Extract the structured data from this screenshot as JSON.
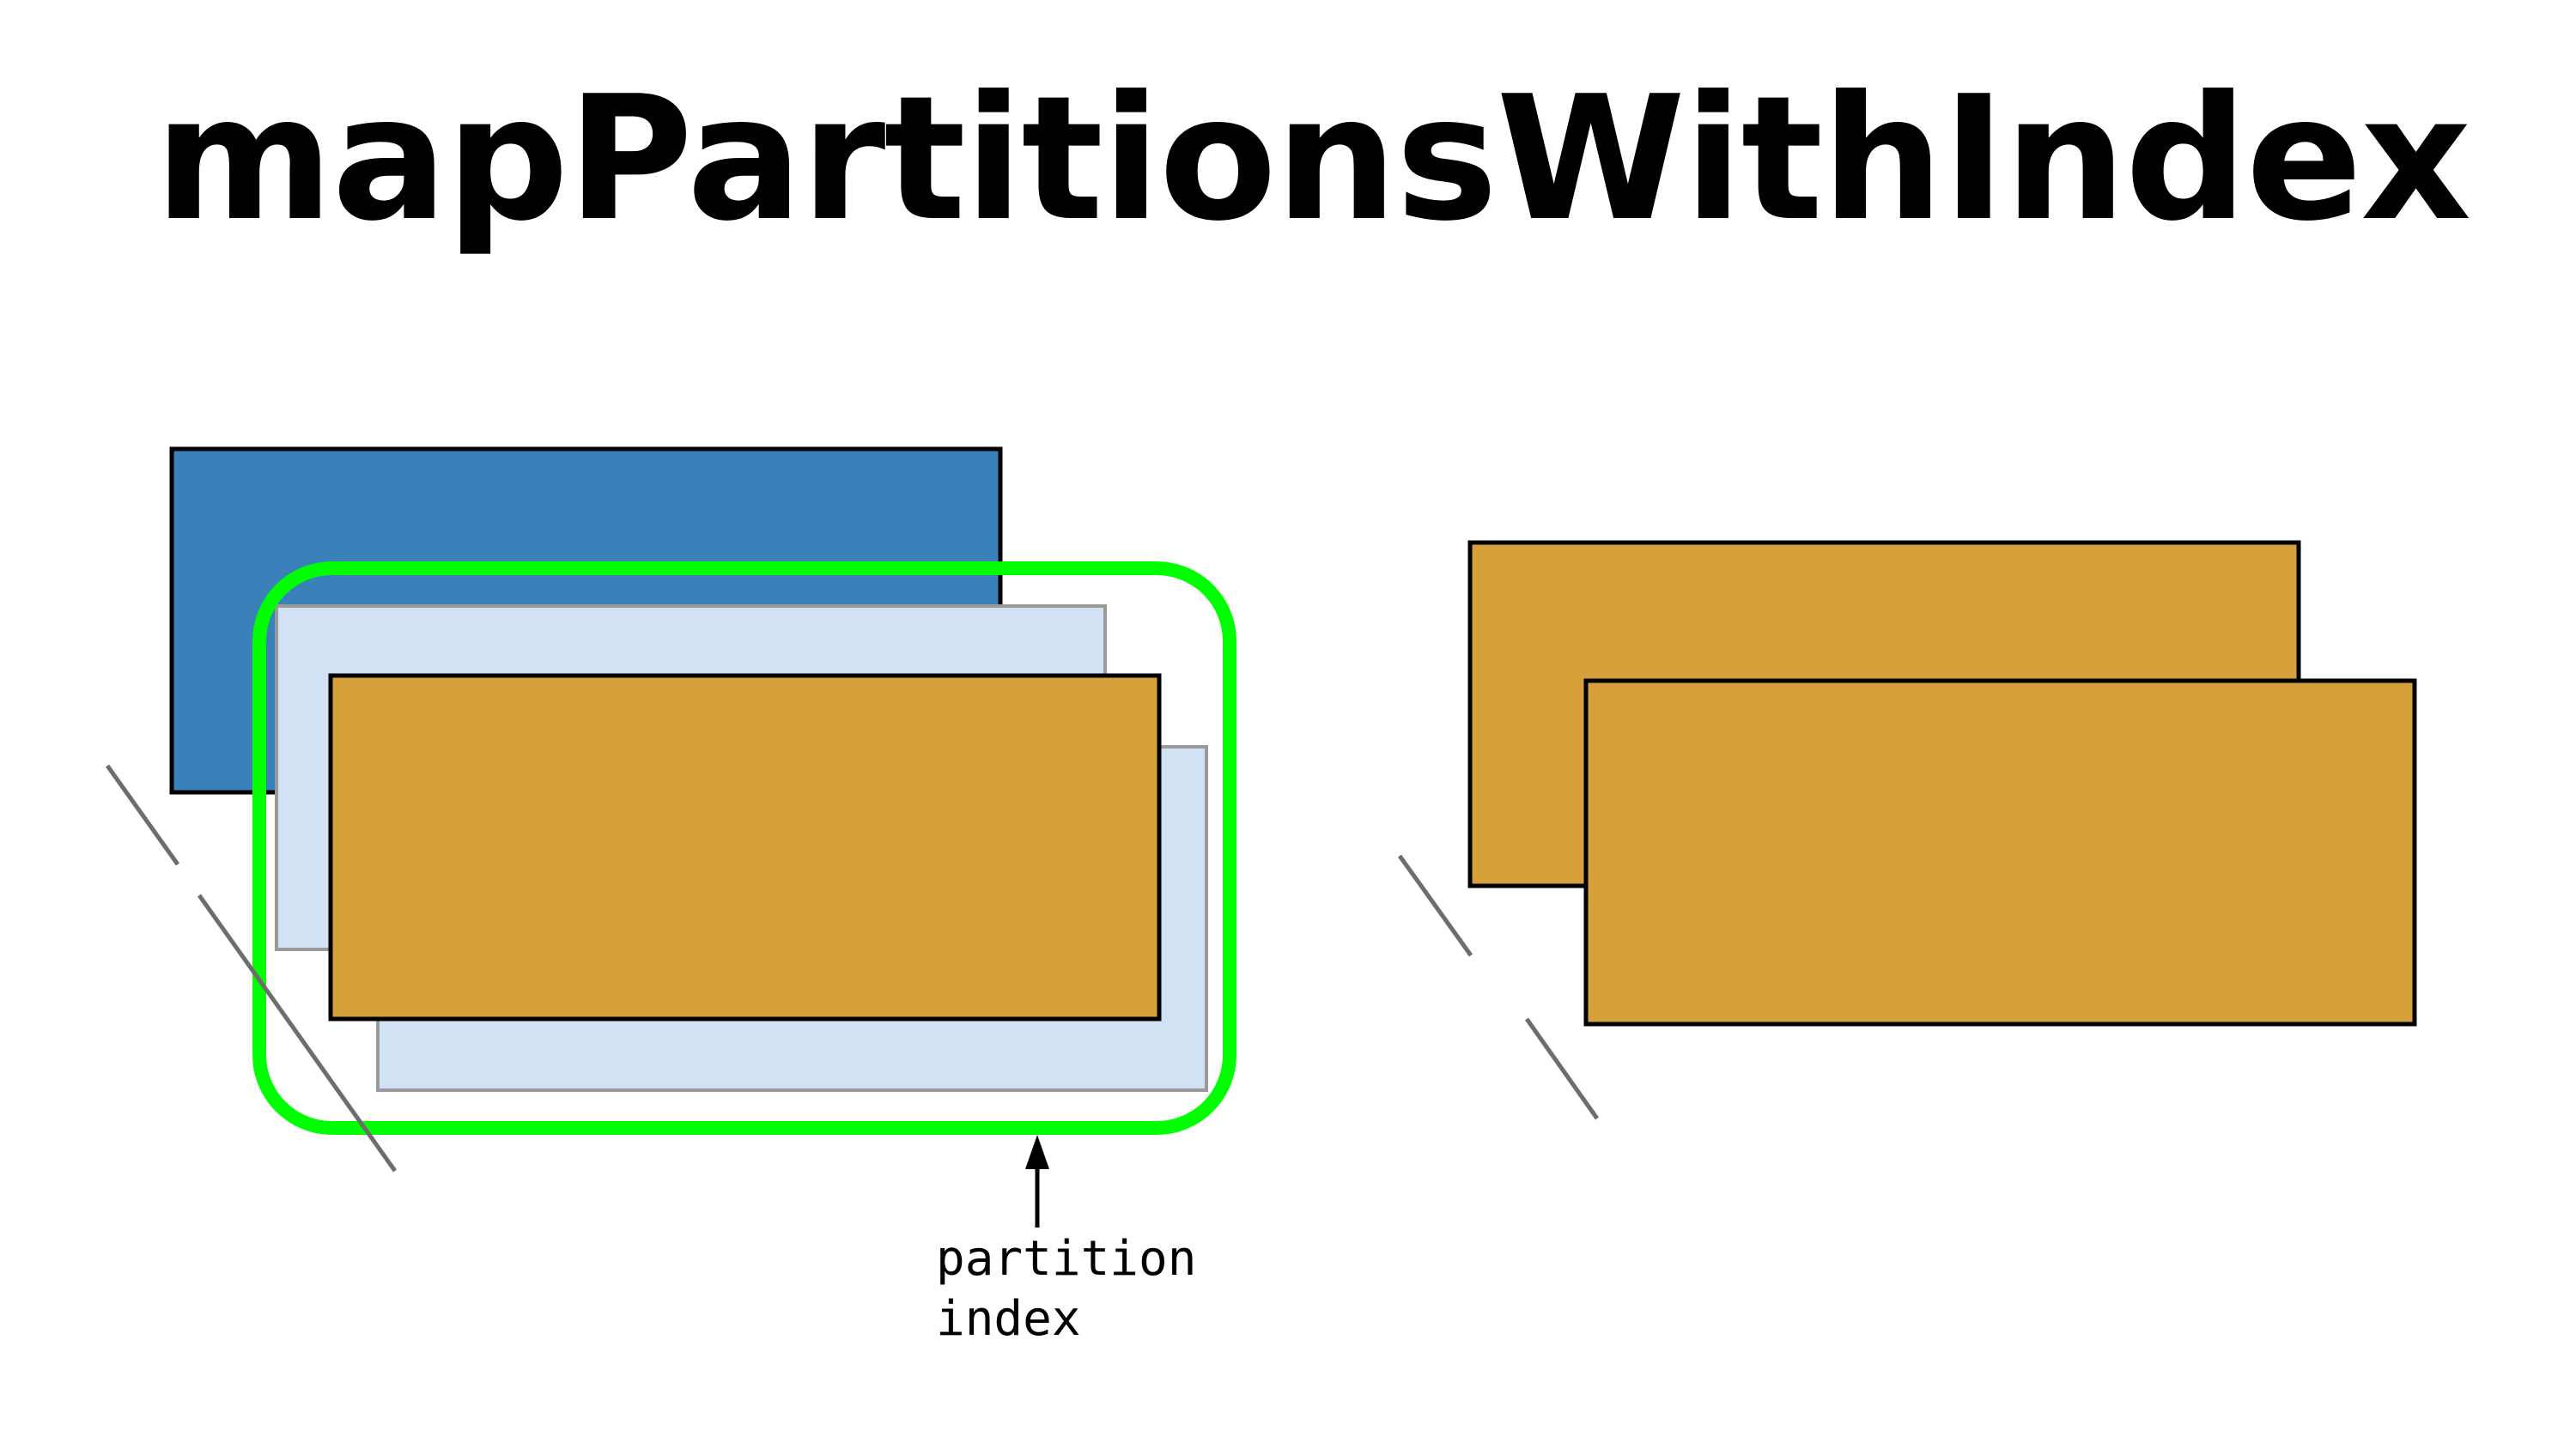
{
  "title": "mapPartitionsWithIndex",
  "annotation": {
    "line1": "partition",
    "line2": "index"
  },
  "colors": {
    "input_partition_blue": "#3a80b9",
    "input_partition_light": "#d0e2f3",
    "mapped_partition_gold": "#d6a03b",
    "highlight_green": "#00ff00",
    "continuation_dash": "#6d6d6d",
    "outline": "#000000"
  },
  "icons": [
    "arrow-up-icon"
  ]
}
